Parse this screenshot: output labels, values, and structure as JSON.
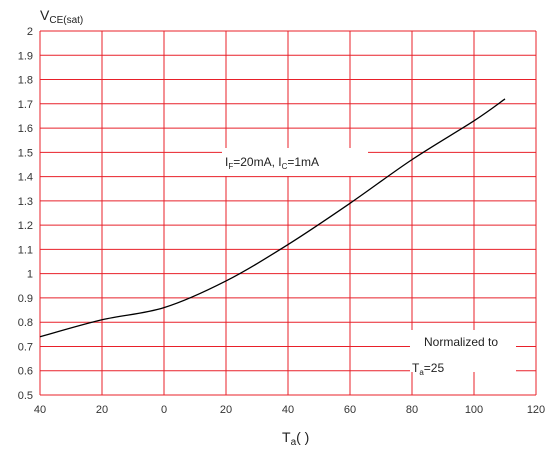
{
  "chart_data": {
    "type": "line",
    "ylabel": {
      "main": "V",
      "sub": "CE(sat)"
    },
    "xlabel": {
      "main": "T",
      "sub": "a",
      "suffix": "(    )"
    },
    "annotation": {
      "part1": "I",
      "sub1": "F",
      "part2": "=20mA,  I",
      "sub2": "C",
      "part3": "=1mA"
    },
    "note": {
      "line1": "Normalized to",
      "line2_main": "T",
      "line2_sub": "a",
      "line2_rest": "=25"
    },
    "x_ticks": [
      {
        "value": -40,
        "label": "40"
      },
      {
        "value": -20,
        "label": "20"
      },
      {
        "value": 0,
        "label": "0"
      },
      {
        "value": 20,
        "label": "20"
      },
      {
        "value": 40,
        "label": "40"
      },
      {
        "value": 60,
        "label": "60"
      },
      {
        "value": 80,
        "label": "80"
      },
      {
        "value": 100,
        "label": "100"
      },
      {
        "value": 120,
        "label": "120"
      }
    ],
    "y_ticks": [
      "0.5",
      "0.6",
      "0.7",
      "0.8",
      "0.9",
      "1",
      "1.1",
      "1.2",
      "1.3",
      "1.4",
      "1.5",
      "1.6",
      "1.7",
      "1.8",
      "1.9",
      "2"
    ],
    "xlim": [
      -40,
      120
    ],
    "ylim": [
      0.5,
      2.0
    ],
    "grid": true,
    "grid_color": "#e8202a",
    "line_color": "#000000",
    "series": [
      {
        "x": [
          -40,
          -20,
          0,
          20,
          40,
          60,
          80,
          100,
          110
        ],
        "y": [
          0.74,
          0.81,
          0.86,
          0.97,
          1.12,
          1.29,
          1.47,
          1.63,
          1.72
        ]
      }
    ]
  }
}
